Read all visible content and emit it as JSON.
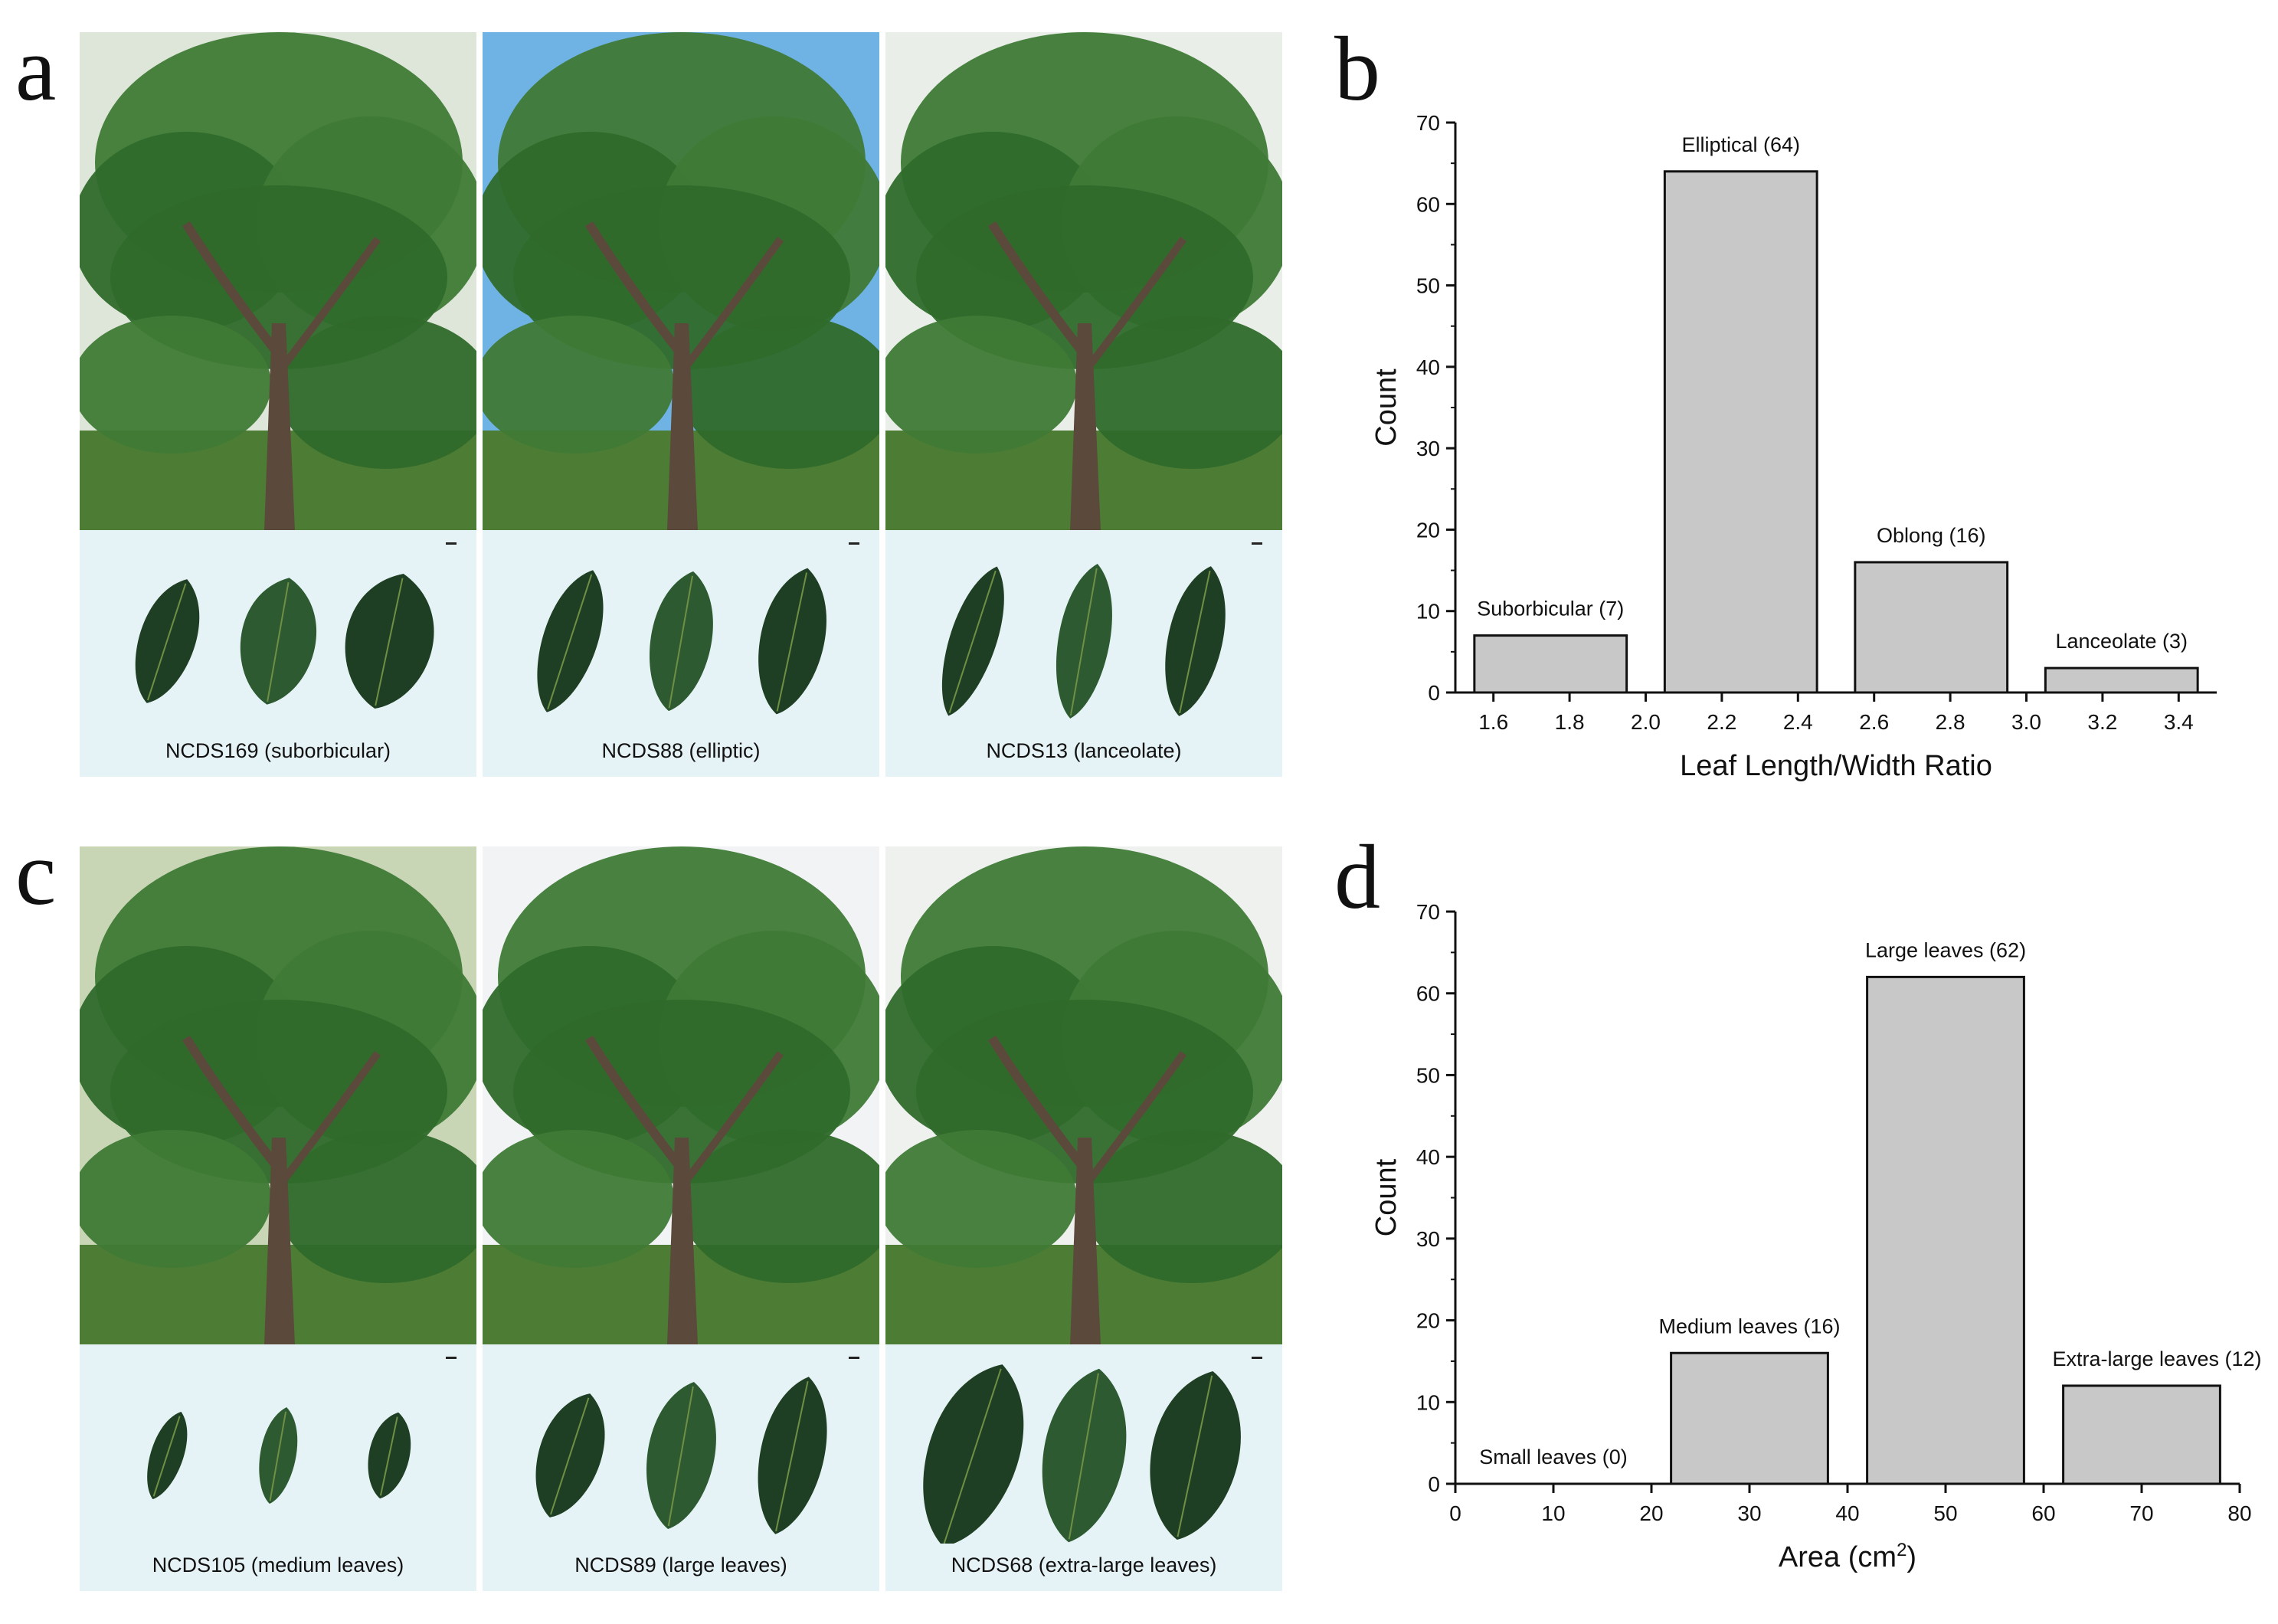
{
  "panels": {
    "a": {
      "letter": "a",
      "cells": [
        {
          "caption": "NCDS169 (suborbicular)",
          "sky": "#dde6d9",
          "leaf_count": 3,
          "leaf_shape": "suborbicular"
        },
        {
          "caption": "NCDS88 (elliptic)",
          "sky": "#6fb2e4",
          "leaf_count": 3,
          "leaf_shape": "elliptic"
        },
        {
          "caption": "NCDS13 (lanceolate)",
          "sky": "#e9efe8",
          "leaf_count": 3,
          "leaf_shape": "lanceolate"
        }
      ]
    },
    "c": {
      "letter": "c",
      "cells": [
        {
          "caption": "NCDS105 (medium leaves)",
          "sky": "#c9d6b6",
          "leaf_count": 3,
          "leaf_shape": "medium"
        },
        {
          "caption": "NCDS89 (large leaves)",
          "sky": "#f1f3f4",
          "leaf_count": 3,
          "leaf_shape": "large"
        },
        {
          "caption": "NCDS68 (extra-large leaves)",
          "sky": "#eef1ee",
          "leaf_count": 3,
          "leaf_shape": "extra-large"
        }
      ]
    },
    "b": {
      "letter": "b"
    },
    "d": {
      "letter": "d"
    }
  },
  "colors": {
    "bar_fill": "#c8c8c8",
    "bar_stroke": "#111111",
    "leaf_dark": "#1f3f24",
    "leaf_mid": "#2d5a31",
    "foliage": "#3f7a36",
    "trunk": "#5b4a3b",
    "leafbox_bg": "#e6f3f6"
  },
  "chart_data": [
    {
      "type": "bar",
      "panel": "b",
      "xlabel": "Leaf Length/Width Ratio",
      "ylabel": "Count",
      "xlim": [
        1.5,
        3.5
      ],
      "ylim": [
        0,
        70
      ],
      "xticks": [
        1.6,
        1.8,
        2.0,
        2.2,
        2.4,
        2.6,
        2.8,
        3.0,
        3.2,
        3.4
      ],
      "xtick_labels": [
        "1.6",
        "1.8",
        "2.0",
        "2.2",
        "2.4",
        "2.6",
        "2.8",
        "3.0",
        "3.2",
        "3.4"
      ],
      "yticks": [
        0,
        10,
        20,
        30,
        40,
        50,
        60,
        70
      ],
      "ytick_labels": [
        "0",
        "10",
        "20",
        "30",
        "40",
        "50",
        "60",
        "70"
      ],
      "grid": false,
      "bars": [
        {
          "x0": 1.55,
          "x1": 1.95,
          "value": 7,
          "label": "Suborbicular (7)"
        },
        {
          "x0": 2.05,
          "x1": 2.45,
          "value": 64,
          "label": "Elliptical (64)"
        },
        {
          "x0": 2.55,
          "x1": 2.95,
          "value": 16,
          "label": "Oblong (16)"
        },
        {
          "x0": 3.05,
          "x1": 3.45,
          "value": 3,
          "label": "Lanceolate (3)"
        }
      ]
    },
    {
      "type": "bar",
      "panel": "d",
      "xlabel": "Area (cm",
      "xlabel_sup": "2",
      "xlabel_end": ")",
      "ylabel": "Count",
      "xlim": [
        0,
        80
      ],
      "ylim": [
        0,
        70
      ],
      "xticks": [
        0,
        10,
        20,
        30,
        40,
        50,
        60,
        70,
        80
      ],
      "xtick_labels": [
        "0",
        "10",
        "20",
        "30",
        "40",
        "50",
        "60",
        "70",
        "80"
      ],
      "yticks": [
        0,
        10,
        20,
        30,
        40,
        50,
        60,
        70
      ],
      "ytick_labels": [
        "0",
        "10",
        "20",
        "30",
        "40",
        "50",
        "60",
        "70"
      ],
      "grid": false,
      "bars": [
        {
          "x0": 2,
          "x1": 18,
          "value": 0,
          "label": "Small leaves (0)"
        },
        {
          "x0": 22,
          "x1": 38,
          "value": 16,
          "label": "Medium leaves (16)"
        },
        {
          "x0": 42,
          "x1": 58,
          "value": 62,
          "label": "Large leaves (62)"
        },
        {
          "x0": 62,
          "x1": 78,
          "value": 12,
          "label": "Extra-large leaves (12)"
        }
      ]
    }
  ]
}
